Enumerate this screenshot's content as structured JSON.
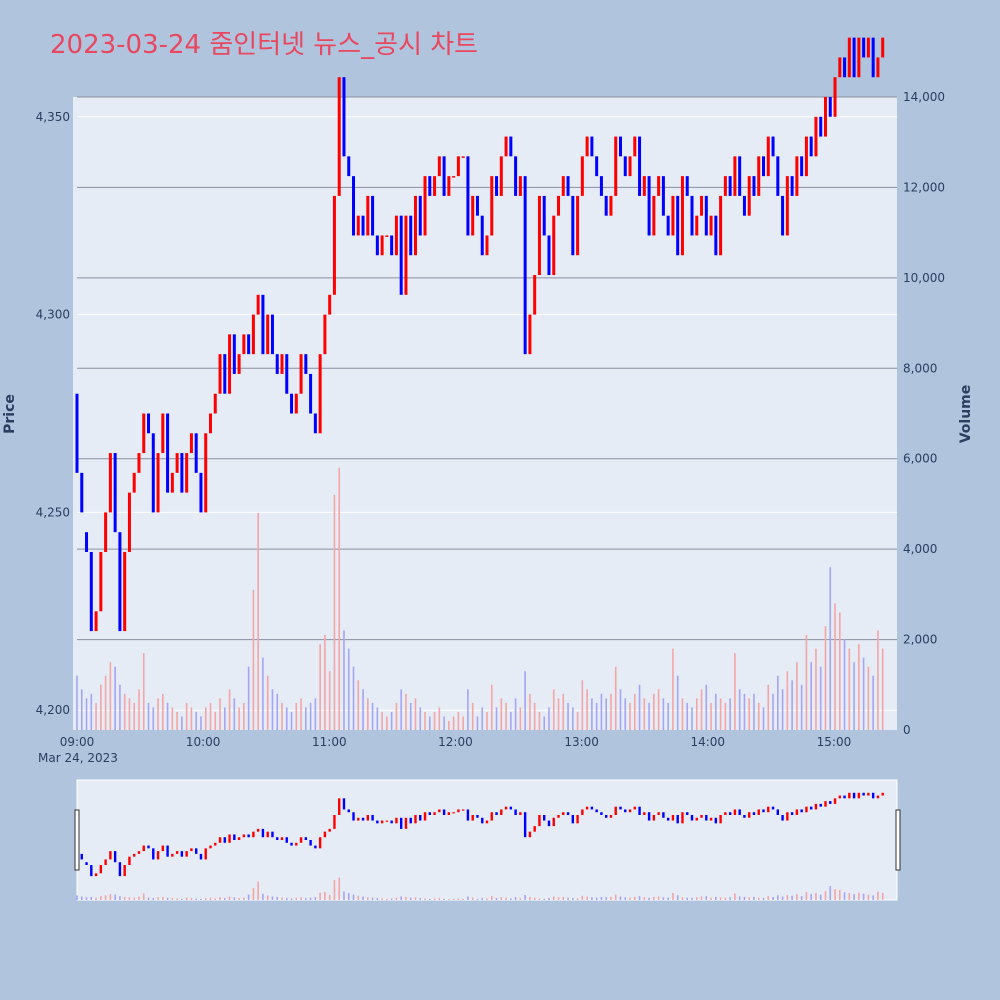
{
  "title": "2023-03-24 줌인터넷 뉴스_공시 차트",
  "colors": {
    "up": "#ff0000",
    "down": "#0000ff",
    "up_vol": "#f4a5a5",
    "down_vol": "#a5a5f4",
    "plot_bg": "#e5ecf6",
    "page_bg": "#b0c4de",
    "title": "#e8475f"
  },
  "chart_data": {
    "type": "candlestick",
    "xlabel": "",
    "ylabel": "Price",
    "y2label": "Volume",
    "x_range": [
      "09:00",
      "15:30"
    ],
    "x_ticks": [
      "09:00",
      "10:00",
      "11:00",
      "12:00",
      "13:00",
      "14:00",
      "15:00"
    ],
    "x_date_label": "Mar 24, 2023",
    "price_ylim": [
      4195,
      4355
    ],
    "price_ticks": [
      "4,200",
      "4,250",
      "4,300",
      "4,350"
    ],
    "price_tick_values": [
      4200,
      4250,
      4300,
      4350
    ],
    "volume_ylim": [
      0,
      14000
    ],
    "volume_ticks": [
      "0",
      "2,000",
      "4,000",
      "6,000",
      "8,000",
      "10,000",
      "12,000",
      "14,000"
    ],
    "volume_tick_values": [
      0,
      2000,
      4000,
      6000,
      8000,
      10000,
      12000,
      14000
    ],
    "grid": true,
    "candles_minute_open_close_volume": [
      [
        0,
        4280,
        4260,
        1200
      ],
      [
        1,
        4260,
        4250,
        900
      ],
      [
        2,
        4245,
        4240,
        700
      ],
      [
        3,
        4240,
        4220,
        800
      ],
      [
        4,
        4220,
        4225,
        600
      ],
      [
        5,
        4225,
        4240,
        1000
      ],
      [
        6,
        4240,
        4250,
        1200
      ],
      [
        7,
        4250,
        4265,
        1500
      ],
      [
        8,
        4265,
        4245,
        1400
      ],
      [
        9,
        4245,
        4220,
        1000
      ],
      [
        10,
        4220,
        4240,
        800
      ],
      [
        11,
        4240,
        4255,
        700
      ],
      [
        12,
        4255,
        4260,
        600
      ],
      [
        13,
        4260,
        4265,
        900
      ],
      [
        14,
        4265,
        4275,
        1700
      ],
      [
        15,
        4275,
        4270,
        600
      ],
      [
        16,
        4270,
        4250,
        500
      ],
      [
        17,
        4250,
        4265,
        700
      ],
      [
        18,
        4265,
        4275,
        800
      ],
      [
        19,
        4275,
        4255,
        600
      ],
      [
        20,
        4255,
        4260,
        500
      ],
      [
        21,
        4260,
        4265,
        400
      ],
      [
        22,
        4265,
        4255,
        300
      ],
      [
        23,
        4255,
        4265,
        600
      ],
      [
        24,
        4265,
        4270,
        500
      ],
      [
        25,
        4270,
        4260,
        400
      ],
      [
        26,
        4260,
        4250,
        300
      ],
      [
        27,
        4250,
        4270,
        500
      ],
      [
        28,
        4270,
        4275,
        600
      ],
      [
        29,
        4275,
        4280,
        400
      ],
      [
        30,
        4280,
        4290,
        700
      ],
      [
        31,
        4290,
        4280,
        500
      ],
      [
        32,
        4280,
        4295,
        900
      ],
      [
        33,
        4295,
        4285,
        700
      ],
      [
        34,
        4285,
        4290,
        500
      ],
      [
        35,
        4290,
        4295,
        600
      ],
      [
        36,
        4295,
        4290,
        1400
      ],
      [
        37,
        4290,
        4300,
        3100
      ],
      [
        38,
        4300,
        4305,
        4800
      ],
      [
        39,
        4305,
        4290,
        1600
      ],
      [
        40,
        4290,
        4300,
        1200
      ],
      [
        41,
        4300,
        4290,
        900
      ],
      [
        42,
        4290,
        4285,
        800
      ],
      [
        43,
        4285,
        4290,
        600
      ],
      [
        44,
        4290,
        4280,
        500
      ],
      [
        45,
        4280,
        4275,
        400
      ],
      [
        46,
        4275,
        4280,
        600
      ],
      [
        47,
        4280,
        4290,
        700
      ],
      [
        48,
        4290,
        4285,
        500
      ],
      [
        49,
        4285,
        4275,
        600
      ],
      [
        50,
        4275,
        4270,
        700
      ],
      [
        51,
        4270,
        4290,
        1900
      ],
      [
        52,
        4290,
        4300,
        2100
      ],
      [
        53,
        4300,
        4305,
        1300
      ],
      [
        54,
        4305,
        4330,
        5200
      ],
      [
        55,
        4330,
        4360,
        5800
      ],
      [
        56,
        4360,
        4340,
        2200
      ],
      [
        57,
        4340,
        4335,
        1800
      ],
      [
        58,
        4335,
        4320,
        1400
      ],
      [
        59,
        4320,
        4325,
        1100
      ],
      [
        60,
        4325,
        4320,
        900
      ],
      [
        61,
        4320,
        4330,
        700
      ],
      [
        62,
        4330,
        4320,
        600
      ],
      [
        63,
        4320,
        4315,
        500
      ],
      [
        64,
        4315,
        4320,
        400
      ],
      [
        65,
        4320,
        4320,
        300
      ],
      [
        66,
        4320,
        4315,
        400
      ],
      [
        67,
        4315,
        4325,
        600
      ],
      [
        68,
        4325,
        4305,
        900
      ],
      [
        69,
        4305,
        4325,
        800
      ],
      [
        70,
        4325,
        4315,
        600
      ],
      [
        71,
        4315,
        4330,
        700
      ],
      [
        72,
        4330,
        4320,
        500
      ],
      [
        73,
        4320,
        4335,
        400
      ],
      [
        74,
        4335,
        4330,
        300
      ],
      [
        75,
        4330,
        4335,
        400
      ],
      [
        76,
        4335,
        4340,
        500
      ],
      [
        77,
        4340,
        4330,
        300
      ],
      [
        78,
        4330,
        4335,
        200
      ],
      [
        79,
        4335,
        4335,
        300
      ],
      [
        80,
        4335,
        4340,
        400
      ],
      [
        81,
        4340,
        4340,
        300
      ],
      [
        82,
        4340,
        4320,
        900
      ],
      [
        83,
        4320,
        4330,
        600
      ],
      [
        84,
        4330,
        4325,
        300
      ],
      [
        85,
        4325,
        4315,
        500
      ],
      [
        86,
        4315,
        4320,
        400
      ],
      [
        87,
        4320,
        4335,
        1000
      ],
      [
        88,
        4335,
        4330,
        500
      ],
      [
        89,
        4330,
        4340,
        700
      ],
      [
        90,
        4340,
        4345,
        600
      ],
      [
        91,
        4345,
        4340,
        400
      ],
      [
        92,
        4340,
        4330,
        700
      ],
      [
        93,
        4330,
        4335,
        500
      ],
      [
        94,
        4335,
        4290,
        1300
      ],
      [
        95,
        4290,
        4300,
        800
      ],
      [
        96,
        4300,
        4310,
        600
      ],
      [
        97,
        4310,
        4330,
        400
      ],
      [
        98,
        4330,
        4320,
        300
      ],
      [
        99,
        4320,
        4310,
        500
      ],
      [
        100,
        4310,
        4325,
        900
      ],
      [
        101,
        4325,
        4330,
        700
      ],
      [
        102,
        4330,
        4335,
        800
      ],
      [
        103,
        4335,
        4330,
        600
      ],
      [
        104,
        4330,
        4315,
        500
      ],
      [
        105,
        4315,
        4330,
        400
      ],
      [
        106,
        4330,
        4340,
        1100
      ],
      [
        107,
        4340,
        4345,
        900
      ],
      [
        108,
        4345,
        4340,
        700
      ],
      [
        109,
        4340,
        4335,
        600
      ],
      [
        110,
        4335,
        4330,
        800
      ],
      [
        111,
        4330,
        4325,
        700
      ],
      [
        112,
        4325,
        4330,
        800
      ],
      [
        113,
        4330,
        4345,
        1400
      ],
      [
        114,
        4345,
        4340,
        900
      ],
      [
        115,
        4340,
        4335,
        700
      ],
      [
        116,
        4335,
        4340,
        600
      ],
      [
        117,
        4340,
        4345,
        800
      ],
      [
        118,
        4345,
        4330,
        1000
      ],
      [
        119,
        4330,
        4335,
        700
      ],
      [
        120,
        4335,
        4320,
        600
      ],
      [
        121,
        4320,
        4330,
        800
      ],
      [
        122,
        4330,
        4335,
        900
      ],
      [
        123,
        4335,
        4325,
        700
      ],
      [
        124,
        4325,
        4320,
        600
      ],
      [
        125,
        4320,
        4330,
        1800
      ],
      [
        126,
        4330,
        4315,
        1200
      ],
      [
        127,
        4315,
        4335,
        700
      ],
      [
        128,
        4335,
        4330,
        600
      ],
      [
        129,
        4330,
        4320,
        500
      ],
      [
        130,
        4320,
        4325,
        700
      ],
      [
        131,
        4325,
        4330,
        900
      ],
      [
        132,
        4330,
        4320,
        1000
      ],
      [
        133,
        4320,
        4325,
        600
      ],
      [
        134,
        4325,
        4315,
        800
      ],
      [
        135,
        4315,
        4330,
        700
      ],
      [
        136,
        4330,
        4335,
        600
      ],
      [
        137,
        4335,
        4330,
        700
      ],
      [
        138,
        4330,
        4340,
        1700
      ],
      [
        139,
        4340,
        4330,
        900
      ],
      [
        140,
        4330,
        4325,
        800
      ],
      [
        141,
        4325,
        4335,
        700
      ],
      [
        142,
        4335,
        4330,
        800
      ],
      [
        143,
        4330,
        4340,
        600
      ],
      [
        144,
        4340,
        4335,
        500
      ],
      [
        145,
        4335,
        4345,
        1000
      ],
      [
        146,
        4345,
        4340,
        800
      ],
      [
        147,
        4340,
        4330,
        1200
      ],
      [
        148,
        4330,
        4320,
        900
      ],
      [
        149,
        4320,
        4335,
        1300
      ],
      [
        150,
        4335,
        4330,
        1100
      ],
      [
        151,
        4330,
        4340,
        1500
      ],
      [
        152,
        4340,
        4335,
        1000
      ],
      [
        153,
        4335,
        4345,
        2100
      ],
      [
        154,
        4345,
        4340,
        1500
      ],
      [
        155,
        4340,
        4350,
        1800
      ],
      [
        156,
        4350,
        4345,
        1400
      ],
      [
        157,
        4345,
        4355,
        2300
      ],
      [
        158,
        4355,
        4350,
        3600
      ],
      [
        159,
        4350,
        4360,
        2800
      ],
      [
        160,
        4360,
        4365,
        2600
      ],
      [
        161,
        4365,
        4360,
        2000
      ],
      [
        162,
        4360,
        4370,
        1800
      ],
      [
        163,
        4370,
        4360,
        1500
      ],
      [
        164,
        4360,
        4370,
        1900
      ],
      [
        165,
        4370,
        4365,
        1600
      ],
      [
        166,
        4365,
        4370,
        1400
      ],
      [
        167,
        4370,
        4360,
        1200
      ],
      [
        168,
        4360,
        4365,
        2200
      ],
      [
        169,
        4365,
        4370,
        1800
      ]
    ]
  }
}
